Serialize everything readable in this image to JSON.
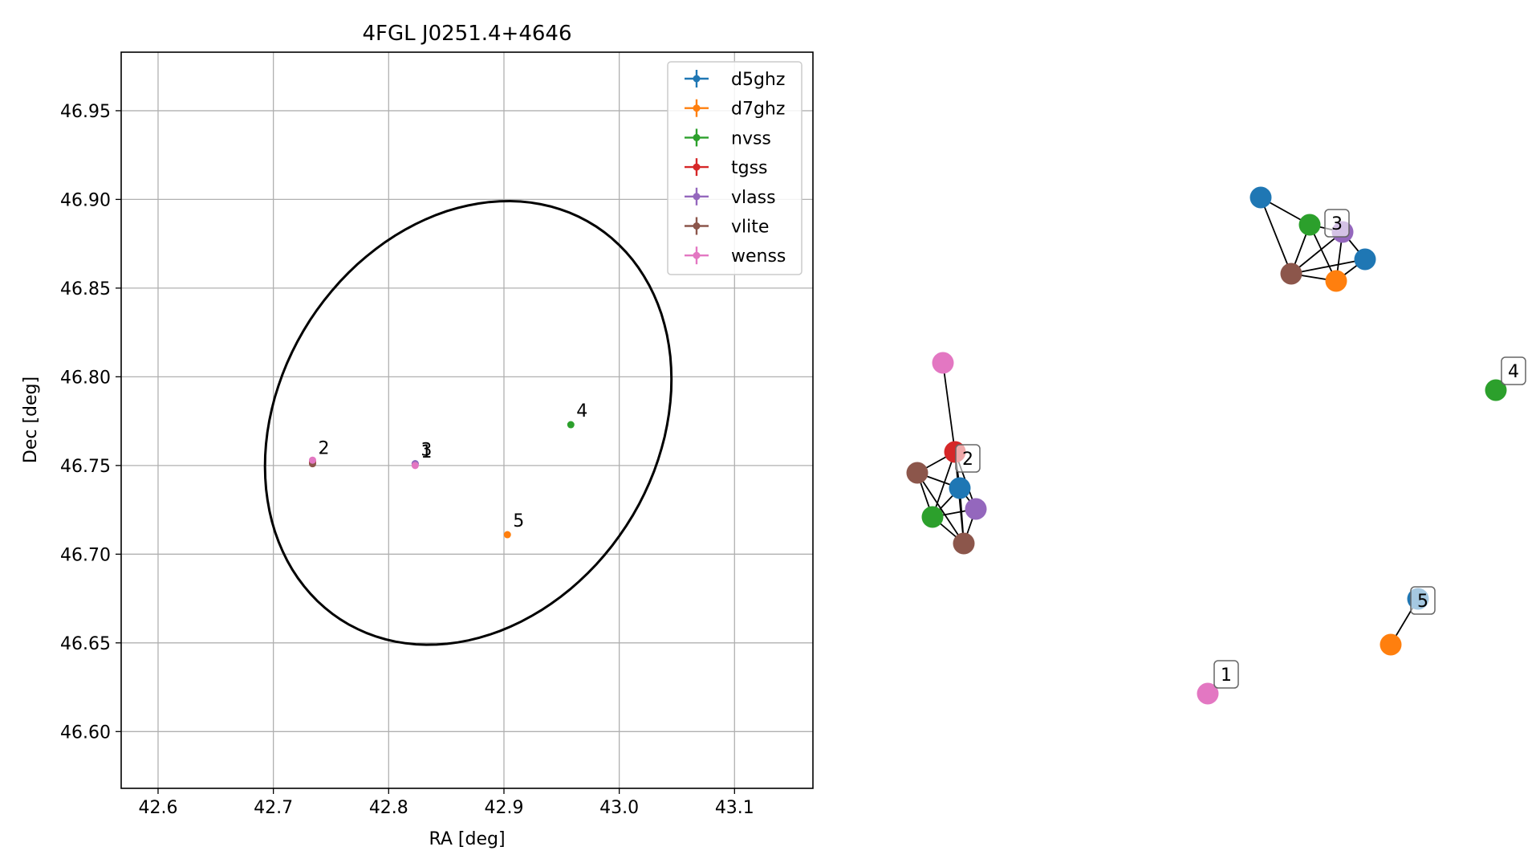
{
  "colors": {
    "d5ghz": "#1f77b4",
    "d7ghz": "#ff7f0e",
    "nvss": "#2ca02c",
    "tgss": "#d62728",
    "vlass": "#9467bd",
    "vlite": "#8c564b",
    "wenss": "#e377c2",
    "grid": "#b0b0b0",
    "ellipse": "#000000"
  },
  "chart_data": [
    {
      "type": "scatter",
      "title": "4FGL J0251.4+4646",
      "xlabel": "RA [deg]",
      "ylabel": "Dec [deg]",
      "xlim": [
        42.568,
        43.168
      ],
      "ylim": [
        46.568,
        46.983
      ],
      "xticks": [
        42.6,
        42.7,
        42.8,
        42.9,
        43.0,
        43.1
      ],
      "xtick_labels": [
        "42.6",
        "42.7",
        "42.8",
        "42.9",
        "43.0",
        "43.1"
      ],
      "yticks": [
        46.6,
        46.65,
        46.7,
        46.75,
        46.8,
        46.85,
        46.9,
        46.95
      ],
      "ytick_labels": [
        "46.60",
        "46.65",
        "46.70",
        "46.75",
        "46.80",
        "46.85",
        "46.90",
        "46.95"
      ],
      "grid": true,
      "legend": "top-right",
      "legend_entries": [
        "d5ghz",
        "d7ghz",
        "nvss",
        "tgss",
        "vlass",
        "vlite",
        "wenss"
      ],
      "series": [
        {
          "name": "d5ghz",
          "points": [
            {
              "x": 42.823,
              "y": 46.751
            }
          ]
        },
        {
          "name": "d7ghz",
          "points": [
            {
              "x": 42.903,
              "y": 46.711
            }
          ]
        },
        {
          "name": "nvss",
          "points": [
            {
              "x": 42.958,
              "y": 46.773
            },
            {
              "x": 42.734,
              "y": 46.752
            }
          ]
        },
        {
          "name": "tgss",
          "points": [
            {
              "x": 42.734,
              "y": 46.752
            }
          ]
        },
        {
          "name": "vlass",
          "points": [
            {
              "x": 42.823,
              "y": 46.751
            }
          ]
        },
        {
          "name": "vlite",
          "points": [
            {
              "x": 42.734,
              "y": 46.751
            }
          ]
        },
        {
          "name": "wenss",
          "points": [
            {
              "x": 42.734,
              "y": 46.753
            },
            {
              "x": 42.823,
              "y": 46.75
            }
          ]
        }
      ],
      "annotations": [
        {
          "text": "1",
          "x": 42.823,
          "y": 46.75
        },
        {
          "text": "2",
          "x": 42.734,
          "y": 46.752
        },
        {
          "text": "3",
          "x": 42.823,
          "y": 46.751
        },
        {
          "text": "4",
          "x": 42.958,
          "y": 46.773
        },
        {
          "text": "5",
          "x": 42.903,
          "y": 46.711
        }
      ],
      "ellipse": {
        "center_ra": 42.869,
        "center_dec": 46.774
      }
    },
    {
      "type": "network",
      "clusters": [
        {
          "label": "1",
          "nodes": [
            {
              "catalog": "wenss"
            }
          ]
        },
        {
          "label": "2",
          "nodes": [
            {
              "catalog": "wenss"
            },
            {
              "catalog": "tgss"
            },
            {
              "catalog": "vlite"
            },
            {
              "catalog": "d5ghz"
            },
            {
              "catalog": "nvss"
            },
            {
              "catalog": "vlass"
            },
            {
              "catalog": "vlite"
            }
          ]
        },
        {
          "label": "3",
          "nodes": [
            {
              "catalog": "d5ghz"
            },
            {
              "catalog": "nvss"
            },
            {
              "catalog": "vlass"
            },
            {
              "catalog": "d5ghz"
            },
            {
              "catalog": "vlite"
            },
            {
              "catalog": "d7ghz"
            }
          ]
        },
        {
          "label": "4",
          "nodes": [
            {
              "catalog": "nvss"
            }
          ]
        },
        {
          "label": "5",
          "nodes": [
            {
              "catalog": "d5ghz"
            },
            {
              "catalog": "d7ghz"
            }
          ]
        }
      ]
    }
  ]
}
